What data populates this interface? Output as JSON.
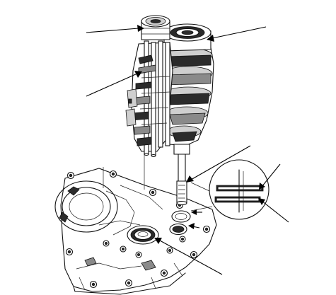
{
  "figure": {
    "labels": [],
    "colors": {
      "ink": "#111111",
      "paper": "#ffffff",
      "shade_dark": "#2b2b2b",
      "shade_mid": "#8a8a8a",
      "shade_light": "#cfcfcf"
    },
    "parts": [
      "transmission-case",
      "mainshaft-countershaft-assembly",
      "shift-fork-shaft-assembly",
      "countershaft-bearing",
      "mainshaft-end",
      "snap-ring",
      "bearing-seat",
      "snap-ring-detail-inset"
    ]
  }
}
